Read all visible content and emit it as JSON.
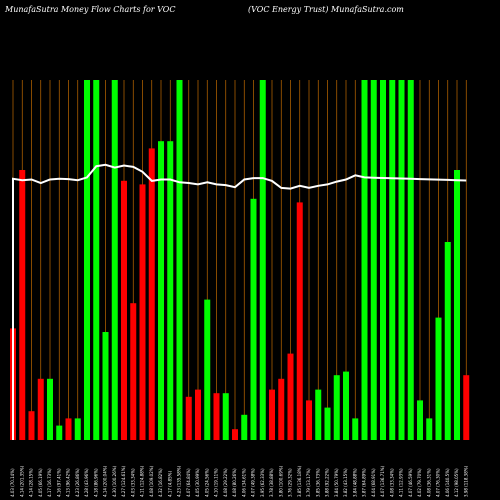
{
  "header": {
    "left": "MunafaSutra  Money Flow  Charts for VOC",
    "right": "(VOC Energy Trust)  MunafaSutra.com"
  },
  "colors": {
    "background": "#000000",
    "grid": "#c06a00",
    "up": "#00ff00",
    "down": "#ff0000",
    "line": "#ffffff",
    "text": "#ffffff"
  },
  "chart_data": {
    "type": "bar",
    "title": "MunafaSutra  Money Flow  Charts for VOC",
    "subtitle": "(VOC Energy Trust)  MunafaSutra.com",
    "ylim": [
      0,
      100
    ],
    "categories": [
      "4.03 (70.14%)",
      "4.14 (201.35%)",
      "4.14 (28.15%)",
      "4.05 (66.19%)",
      "4.17 (16.73%)",
      "4.16 (97.41%)",
      "4.13 (96.42%)",
      "4.23 (26.86%)",
      "4.28 (43.96%)",
      "4.18 (86.96%)",
      "4.14 (200.04%)",
      "4.30 (100.26%)",
      "4.27 (124.61%)",
      "4.03 (33.34%)",
      "4.11 (124.88%)",
      "4.08 (109.02%)",
      "4.32 (16.82%)",
      "4.17 (4.85%)",
      "4.23 (135.58%)",
      "4.07 (64.84%)",
      "4.05 (30.99%)",
      "4.05 (24.56%)",
      "4.10 (19.11%)",
      "4.08 (29.22%)",
      "4.08 (80.26%)",
      "4.06 (34.61%)",
      "4.07 (49.38%)",
      "3.95 (62.33%)",
      "3.78 (38.88%)",
      "3.80 (100.69%)",
      "3.76 (29.32%)",
      "3.85 (136.18%)",
      "3.79 (13.17%)",
      "3.85 (36.73%)",
      "3.88 (92.22%)",
      "3.84 (50.79%)",
      "3.82 (43.15%)",
      "3.84 (48.88%)",
      "3.87 (64.89%)",
      "4.04 (68.91%)",
      "4.07 (136.71%)",
      "4.08 (33.34%)",
      "4.11 (12.93%)",
      "4.07 (46.59%)",
      "4.02 (79.70%)",
      "4.08 (36.31%)",
      "4.07 (76.30%)",
      "4.06 (140.5%)",
      "4.12 (98.05%)",
      "3.98 (118.38%)"
    ],
    "series": [
      {
        "name": "",
        "values": [
          31,
          75,
          8,
          17,
          17,
          4,
          6,
          6,
          100,
          100,
          30,
          100,
          72,
          38,
          71,
          81,
          83,
          83,
          100,
          12,
          14,
          39,
          13,
          13,
          3,
          7,
          67,
          100,
          14,
          17,
          24,
          66,
          11,
          14,
          9,
          18,
          19,
          6,
          100,
          100,
          100,
          100,
          100,
          100,
          11,
          6,
          34,
          55,
          75,
          18
        ],
        "colors": [
          "down",
          "down",
          "down",
          "down",
          "up",
          "up",
          "down",
          "up",
          "up",
          "up",
          "up",
          "up",
          "down",
          "down",
          "down",
          "down",
          "up",
          "up",
          "up",
          "down",
          "down",
          "up",
          "down",
          "up",
          "down",
          "up",
          "up",
          "up",
          "down",
          "down",
          "down",
          "down",
          "down",
          "up",
          "up",
          "up",
          "up",
          "up",
          "up",
          "up",
          "up",
          "up",
          "up",
          "up",
          "up",
          "up",
          "up",
          "up",
          "up",
          "down"
        ]
      },
      {
        "name": "",
        "type": "line",
        "values": [
          58,
          57,
          57.5,
          55,
          57.5,
          58,
          57.8,
          57,
          59,
          67,
          68,
          66,
          67.5,
          66.5,
          63,
          56.5,
          57.5,
          57.5,
          55.5,
          55,
          54,
          55.5,
          54,
          53.5,
          52,
          57.5,
          58.5,
          58.5,
          56.5,
          51.5,
          51,
          53,
          51.5,
          53,
          54,
          56,
          57.5,
          60.5,
          59,
          58.8,
          58.6,
          58.4,
          58.2,
          58,
          57.8,
          57.6,
          57.4,
          57.2,
          57,
          56.8
        ]
      }
    ]
  }
}
